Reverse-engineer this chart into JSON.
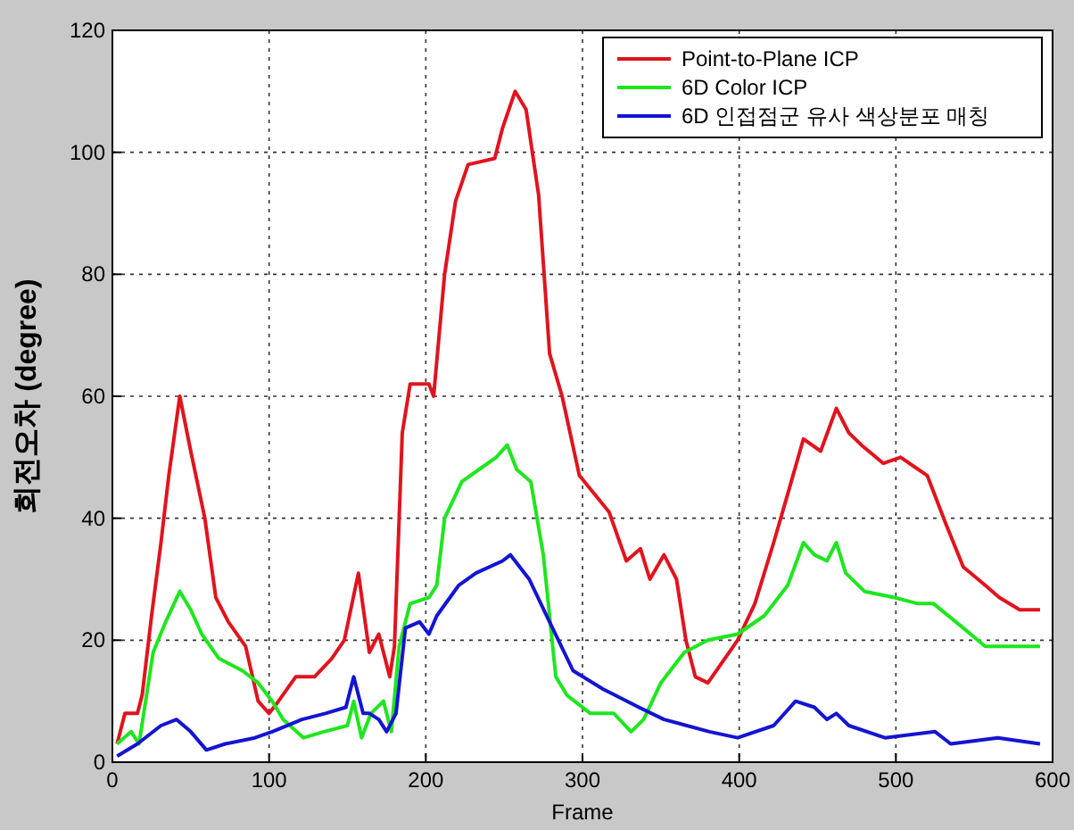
{
  "chart_data": {
    "type": "line",
    "xlabel": "Frame",
    "ylabel": "회전오차 (degree)",
    "xlim": [
      0,
      600
    ],
    "ylim": [
      0,
      120
    ],
    "xticks": [
      0,
      100,
      200,
      300,
      400,
      500,
      600
    ],
    "yticks": [
      0,
      20,
      40,
      60,
      80,
      100,
      120
    ],
    "grid": true,
    "legend": "top right",
    "series": [
      {
        "name": "Point-to-Plane ICP",
        "color": "#e0141e",
        "x": [
          3,
          8,
          16,
          19,
          25,
          31,
          36,
          43,
          50,
          59,
          66,
          74,
          85,
          93,
          100,
          106,
          117,
          129,
          140,
          148,
          157,
          164,
          170,
          177,
          180,
          185,
          190,
          202,
          205,
          212,
          219,
          227,
          244,
          249,
          257,
          264,
          272,
          279,
          287,
          298,
          317,
          328,
          337,
          343,
          352,
          360,
          366,
          372,
          380,
          399,
          410,
          422,
          431,
          441,
          452,
          462,
          470,
          478,
          492,
          503,
          520,
          532,
          543,
          557,
          566,
          579,
          592
        ],
        "values": [
          3,
          8,
          8,
          11,
          24,
          36,
          47,
          60,
          51,
          40,
          27,
          23,
          19,
          10,
          8,
          10,
          14,
          14,
          17,
          20,
          31,
          18,
          21,
          14,
          19,
          54,
          62,
          62,
          60,
          80,
          92,
          98,
          99,
          104,
          110,
          107,
          93,
          67,
          60,
          47,
          41,
          33,
          35,
          30,
          34,
          30,
          20,
          14,
          13,
          20,
          26,
          36,
          44,
          53,
          51,
          58,
          54,
          52,
          49,
          50,
          47,
          39,
          32,
          29,
          27,
          25,
          25
        ]
      },
      {
        "name": "6D Color ICP",
        "color": "#1ee61e",
        "x": [
          3,
          12,
          17,
          26,
          34,
          43,
          50,
          57,
          68,
          83,
          93,
          102,
          109,
          122,
          135,
          150,
          154,
          159,
          165,
          173,
          178,
          183,
          190,
          202,
          207,
          212,
          223,
          234,
          245,
          252,
          258,
          267,
          275,
          283,
          290,
          305,
          320,
          331,
          339,
          350,
          365,
          380,
          399,
          416,
          431,
          441,
          448,
          456,
          462,
          468,
          480,
          499,
          514,
          524,
          543,
          557,
          572,
          592
        ],
        "values": [
          3,
          5,
          3,
          18,
          23,
          28,
          25,
          21,
          17,
          15,
          13,
          10,
          7,
          4,
          5,
          6,
          10,
          4,
          8,
          10,
          5,
          19,
          26,
          27,
          29,
          40,
          46,
          48,
          50,
          52,
          48,
          46,
          34,
          14,
          11,
          8,
          8,
          5,
          7,
          13,
          18,
          20,
          21,
          24,
          29,
          36,
          34,
          33,
          36,
          31,
          28,
          27,
          26,
          26,
          22,
          19,
          19,
          19
        ]
      },
      {
        "name": "6D 인접점군 유사 색상분포 매칭",
        "color": "#1414d2",
        "x": [
          3,
          16,
          31,
          41,
          50,
          60,
          72,
          91,
          102,
          121,
          136,
          149,
          154,
          160,
          164,
          170,
          175,
          181,
          187,
          196,
          202,
          207,
          221,
          232,
          249,
          254,
          266,
          279,
          294,
          313,
          336,
          352,
          381,
          399,
          422,
          436,
          448,
          456,
          462,
          470,
          493,
          525,
          535,
          565,
          592
        ],
        "values": [
          1,
          3,
          6,
          7,
          5,
          2,
          3,
          4,
          5,
          7,
          8,
          9,
          14,
          8,
          8,
          7,
          5,
          8,
          22,
          23,
          21,
          24,
          29,
          31,
          33,
          34,
          30,
          23,
          15,
          12,
          9,
          7,
          5,
          4,
          6,
          10,
          9,
          7,
          8,
          6,
          4,
          5,
          3,
          4,
          3
        ]
      }
    ]
  }
}
